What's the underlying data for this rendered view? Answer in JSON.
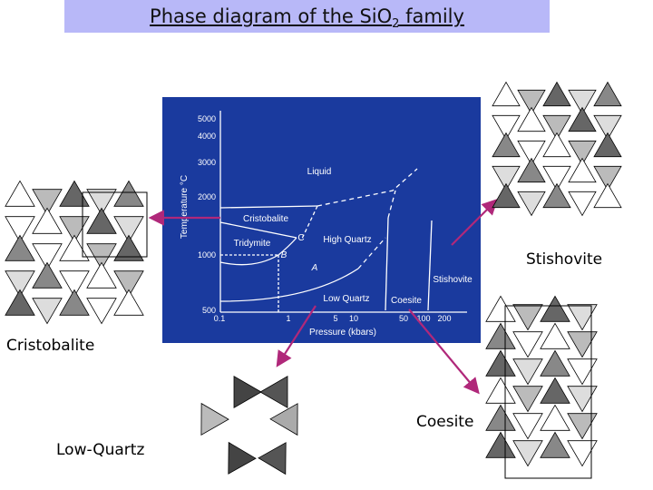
{
  "title": {
    "text": "Phase diagram of the SiO",
    "subscript": "2",
    "suffix": " family"
  },
  "labels": {
    "cristobalite": "Cristobalite",
    "low_quartz": "Low-Quartz",
    "coesite": "Coesite",
    "stishovite": "Stishovite"
  },
  "diagram": {
    "background": "#1a3a9e",
    "arrow_color": "#b0287a",
    "y_axis_label": "Temperature °C",
    "x_axis_label": "Pressure (kbars)",
    "y_ticks": [
      "5000",
      "4000",
      "3000",
      "2000",
      "1000",
      "500"
    ],
    "x_ticks": [
      "0.1",
      "1",
      "5",
      "10",
      "50",
      "100",
      "200"
    ],
    "regions": {
      "liquid": "Liquid",
      "cristobalite": "Cristobalite",
      "tridymite": "Tridymite",
      "high_quartz": "High Quartz",
      "low_quartz": "Low Quartz",
      "coesite": "Coesite",
      "stishovite": "Stishovite",
      "point_a": "A",
      "point_b": "B",
      "point_c": "C"
    }
  }
}
